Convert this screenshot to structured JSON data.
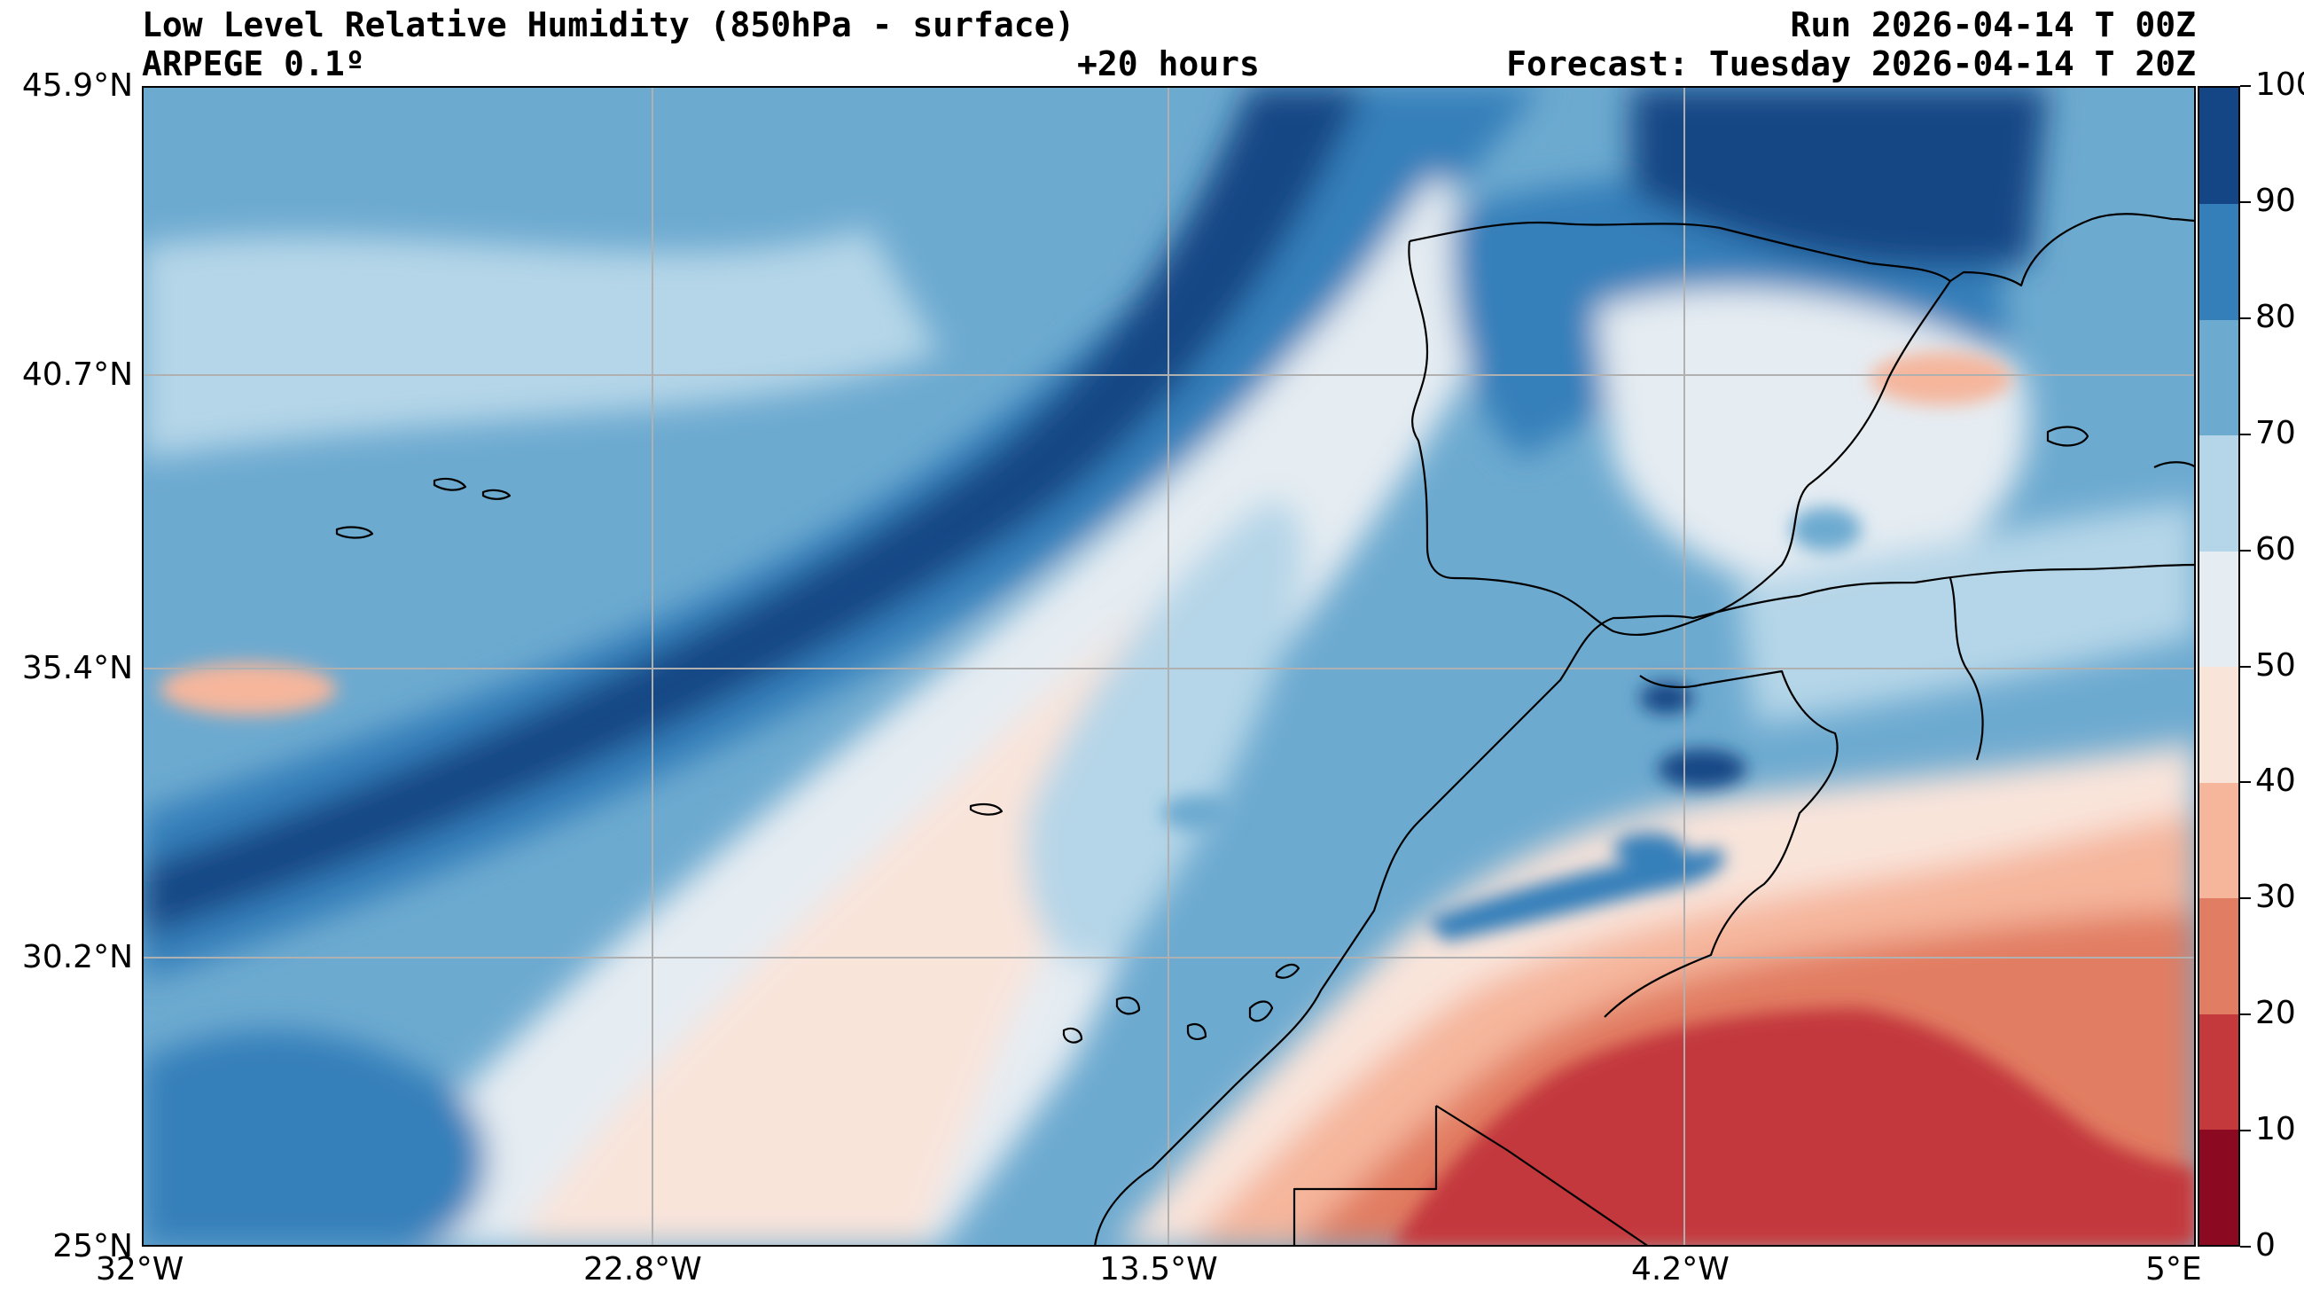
{
  "header": {
    "title": "Low Level Relative Humidity (850hPa - surface)",
    "model": "ARPEGE 0.1º",
    "lead_time": "+20 hours",
    "run": "Run 2026-04-14 T 00Z",
    "forecast": "Forecast: Tuesday 2026-04-14 T 20Z"
  },
  "map": {
    "variable": "relative humidity",
    "lat_range": [
      25.0,
      45.9
    ],
    "lon_range": [
      -32.0,
      5.0
    ],
    "grid": true,
    "lat_ticks": [
      {
        "value": 45.9,
        "label": "45.9°N"
      },
      {
        "value": 40.7,
        "label": "40.7°N"
      },
      {
        "value": 35.4,
        "label": "35.4°N"
      },
      {
        "value": 30.2,
        "label": "30.2°N"
      },
      {
        "value": 25.0,
        "label": "25°N"
      }
    ],
    "lon_ticks": [
      {
        "value": -32.0,
        "label": "32°W"
      },
      {
        "value": -22.8,
        "label": "22.8°W"
      },
      {
        "value": -13.5,
        "label": "13.5°W"
      },
      {
        "value": -4.2,
        "label": "4.2°W"
      },
      {
        "value": 5.0,
        "label": "5°E"
      }
    ]
  },
  "colorbar": {
    "min": 0,
    "max": 100,
    "levels": [
      {
        "from": 0,
        "to": 10,
        "color": "#8b0a22"
      },
      {
        "from": 10,
        "to": 20,
        "color": "#c3393c"
      },
      {
        "from": 20,
        "to": 30,
        "color": "#e17d62"
      },
      {
        "from": 30,
        "to": 40,
        "color": "#f5b69c"
      },
      {
        "from": 40,
        "to": 50,
        "color": "#f9e4da"
      },
      {
        "from": 50,
        "to": 60,
        "color": "#e5ecf2"
      },
      {
        "from": 60,
        "to": 70,
        "color": "#b5d6e8"
      },
      {
        "from": 70,
        "to": 80,
        "color": "#6daad0"
      },
      {
        "from": 80,
        "to": 90,
        "color": "#347fba"
      },
      {
        "from": 90,
        "to": 100,
        "color": "#144685"
      }
    ],
    "tick_labels": [
      "0",
      "10",
      "20",
      "30",
      "40",
      "50",
      "60",
      "70",
      "80",
      "90",
      "100"
    ]
  }
}
